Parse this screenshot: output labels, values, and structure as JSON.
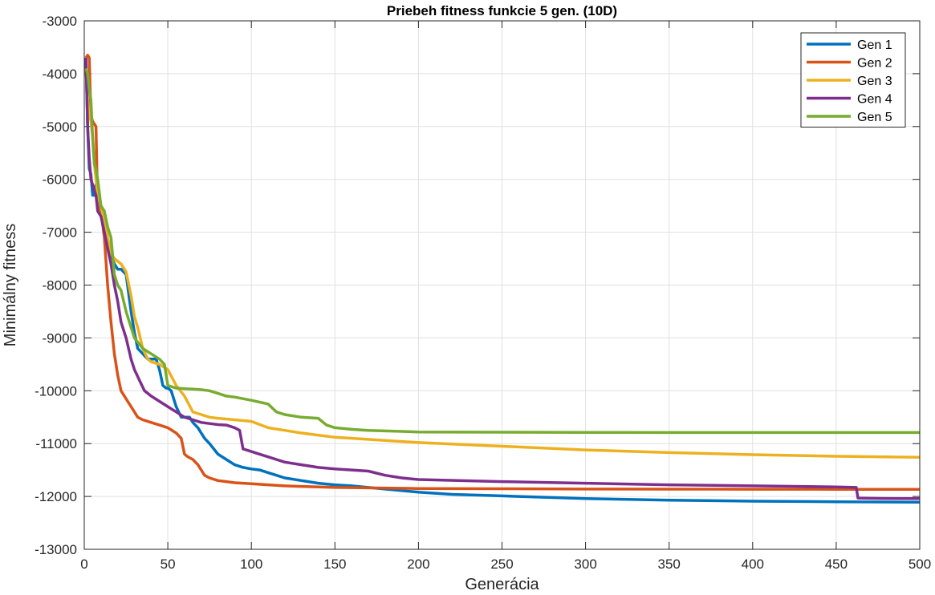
{
  "chart_data": {
    "type": "line",
    "title": "Priebeh fitness funkcie 5 gen. (10D)",
    "xlabel": "Generácia",
    "ylabel": "Minimálny fitness",
    "xlim": [
      0,
      500
    ],
    "ylim": [
      -13000,
      -3000
    ],
    "xticks": [
      0,
      50,
      100,
      150,
      200,
      250,
      300,
      350,
      400,
      450,
      500
    ],
    "yticks": [
      -3000,
      -4000,
      -5000,
      -6000,
      -7000,
      -8000,
      -9000,
      -10000,
      -11000,
      -12000,
      -13000
    ],
    "grid": true,
    "legend_position": "top-right",
    "series": [
      {
        "name": "Gen 1",
        "color": "#0072BD",
        "x": [
          1,
          2,
          3,
          4,
          5,
          6,
          7,
          8,
          10,
          12,
          14,
          16,
          18,
          20,
          22,
          25,
          28,
          30,
          32,
          35,
          38,
          40,
          43,
          45,
          47,
          49,
          50,
          52,
          55,
          58,
          60,
          63,
          65,
          68,
          70,
          72,
          75,
          80,
          85,
          90,
          95,
          100,
          105,
          110,
          115,
          120,
          130,
          140,
          150,
          160,
          170,
          180,
          200,
          220,
          250,
          300,
          350,
          400,
          450,
          500
        ],
        "y": [
          -3700,
          -5000,
          -5800,
          -5900,
          -6300,
          -6300,
          -6100,
          -6500,
          -6600,
          -6800,
          -7200,
          -7400,
          -7600,
          -7700,
          -7700,
          -7800,
          -8500,
          -8900,
          -9200,
          -9300,
          -9400,
          -9400,
          -9400,
          -9600,
          -9900,
          -9950,
          -9950,
          -10000,
          -10300,
          -10500,
          -10500,
          -10500,
          -10600,
          -10700,
          -10800,
          -10900,
          -11000,
          -11200,
          -11300,
          -11400,
          -11450,
          -11480,
          -11500,
          -11550,
          -11600,
          -11650,
          -11700,
          -11750,
          -11780,
          -11800,
          -11830,
          -11860,
          -11920,
          -11960,
          -11990,
          -12040,
          -12070,
          -12090,
          -12100,
          -12110
        ]
      },
      {
        "name": "Gen 2",
        "color": "#D95319",
        "x": [
          1,
          2,
          3,
          4,
          5,
          6,
          7,
          8,
          10,
          12,
          14,
          16,
          18,
          20,
          22,
          24,
          26,
          28,
          30,
          32,
          35,
          40,
          45,
          50,
          55,
          58,
          60,
          62,
          65,
          68,
          70,
          72,
          75,
          80,
          85,
          90,
          100,
          110,
          120,
          130,
          150,
          200,
          250,
          300,
          350,
          400,
          450,
          500
        ],
        "y": [
          -3700,
          -3650,
          -3700,
          -4800,
          -4900,
          -4950,
          -5000,
          -6500,
          -6600,
          -7100,
          -8000,
          -8700,
          -9300,
          -9700,
          -10000,
          -10100,
          -10200,
          -10300,
          -10400,
          -10500,
          -10550,
          -10600,
          -10650,
          -10700,
          -10800,
          -10900,
          -11200,
          -11250,
          -11300,
          -11400,
          -11500,
          -11600,
          -11650,
          -11700,
          -11720,
          -11740,
          -11760,
          -11780,
          -11800,
          -11810,
          -11830,
          -11850,
          -11855,
          -11860,
          -11862,
          -11864,
          -11865,
          -11866
        ]
      },
      {
        "name": "Gen 3",
        "color": "#EDB120",
        "x": [
          1,
          2,
          3,
          4,
          5,
          6,
          7,
          8,
          10,
          12,
          14,
          16,
          18,
          20,
          22,
          25,
          28,
          30,
          32,
          35,
          38,
          40,
          45,
          50,
          55,
          60,
          65,
          70,
          75,
          80,
          90,
          100,
          110,
          120,
          130,
          150,
          200,
          250,
          300,
          350,
          400,
          450,
          500
        ],
        "y": [
          -3900,
          -4500,
          -4800,
          -4900,
          -5200,
          -5700,
          -6000,
          -6300,
          -6500,
          -6800,
          -7100,
          -7400,
          -7500,
          -7550,
          -7600,
          -7750,
          -8200,
          -8600,
          -8800,
          -9200,
          -9400,
          -9450,
          -9500,
          -9600,
          -9900,
          -10100,
          -10400,
          -10450,
          -10500,
          -10520,
          -10550,
          -10580,
          -10700,
          -10750,
          -10800,
          -10880,
          -10980,
          -11050,
          -11120,
          -11170,
          -11210,
          -11240,
          -11260
        ]
      },
      {
        "name": "Gen 4",
        "color": "#7E2F8E",
        "x": [
          1,
          2,
          3,
          4,
          5,
          6,
          7,
          8,
          10,
          12,
          14,
          16,
          18,
          20,
          22,
          25,
          28,
          30,
          33,
          36,
          40,
          45,
          50,
          55,
          60,
          65,
          70,
          75,
          80,
          85,
          90,
          93,
          95,
          100,
          105,
          110,
          115,
          120,
          130,
          140,
          150,
          160,
          170,
          180,
          190,
          200,
          250,
          300,
          350,
          400,
          450,
          462,
          463,
          470,
          480,
          500
        ],
        "y": [
          -3700,
          -5000,
          -5600,
          -6000,
          -6100,
          -6200,
          -6300,
          -6600,
          -6700,
          -7000,
          -7300,
          -7600,
          -8000,
          -8300,
          -8700,
          -9000,
          -9400,
          -9600,
          -9800,
          -10000,
          -10100,
          -10200,
          -10300,
          -10400,
          -10500,
          -10550,
          -10600,
          -10620,
          -10640,
          -10650,
          -10700,
          -10750,
          -11100,
          -11150,
          -11200,
          -11250,
          -11300,
          -11350,
          -11400,
          -11450,
          -11480,
          -11500,
          -11520,
          -11600,
          -11650,
          -11680,
          -11720,
          -11750,
          -11780,
          -11800,
          -11820,
          -11830,
          -12030,
          -12035,
          -12038,
          -12040
        ]
      },
      {
        "name": "Gen 5",
        "color": "#77AC30",
        "x": [
          1,
          2,
          3,
          4,
          5,
          6,
          7,
          8,
          10,
          12,
          14,
          16,
          18,
          20,
          22,
          25,
          28,
          30,
          35,
          40,
          45,
          48,
          50,
          55,
          60,
          65,
          70,
          75,
          80,
          85,
          90,
          95,
          100,
          110,
          115,
          120,
          130,
          140,
          145,
          150,
          160,
          170,
          180,
          190,
          200,
          250,
          300,
          350,
          400,
          450,
          500
        ],
        "y": [
          -3900,
          -4000,
          -4300,
          -4500,
          -5200,
          -5700,
          -5800,
          -6000,
          -6500,
          -6600,
          -6900,
          -7100,
          -7800,
          -8000,
          -8100,
          -8500,
          -8800,
          -9000,
          -9200,
          -9300,
          -9400,
          -9500,
          -9900,
          -9950,
          -9960,
          -9970,
          -9980,
          -10000,
          -10050,
          -10100,
          -10120,
          -10150,
          -10180,
          -10250,
          -10400,
          -10450,
          -10500,
          -10520,
          -10650,
          -10700,
          -10730,
          -10750,
          -10760,
          -10770,
          -10780,
          -10785,
          -10788,
          -10790,
          -10790,
          -10790,
          -10790
        ]
      }
    ]
  }
}
